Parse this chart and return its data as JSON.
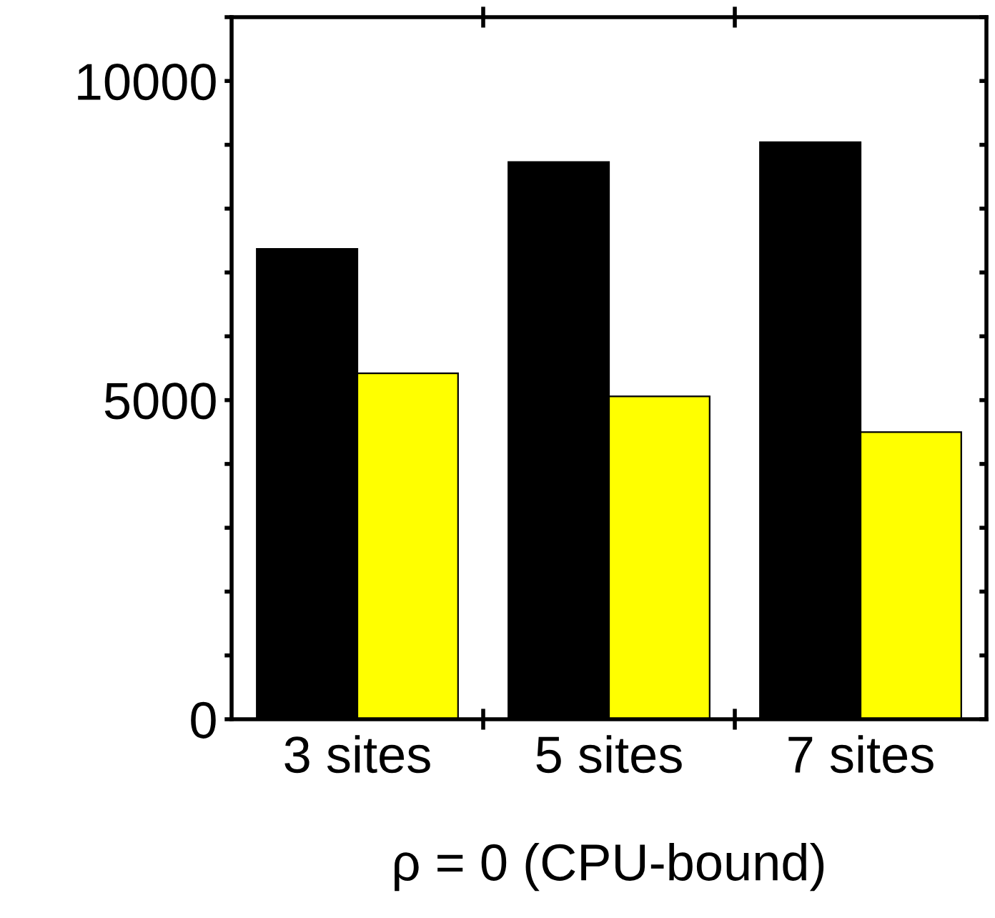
{
  "chart_data": {
    "type": "bar",
    "xlabel": "ρ = 0 (CPU-bound)",
    "categories": [
      "3 sites",
      "5 sites",
      "7 sites"
    ],
    "series": [
      {
        "color": "#000000",
        "values": [
          7370,
          8730,
          9040
        ]
      },
      {
        "color": "#ffff00",
        "values": [
          5420,
          5060,
          4500
        ]
      }
    ],
    "ylim": [
      0,
      11000
    ],
    "yticks": [
      0,
      {
        "value": 1000,
        "label": null
      },
      {
        "value": 2000,
        "label": null
      },
      {
        "value": 3000,
        "label": null
      },
      {
        "value": 4000,
        "label": null
      },
      5000,
      {
        "value": 6000,
        "label": null
      },
      {
        "value": 7000,
        "label": null
      },
      {
        "value": 8000,
        "label": null
      },
      {
        "value": 9000,
        "label": null
      },
      10000,
      {
        "value": 11000,
        "label": null
      }
    ],
    "grid": false,
    "legend": false
  }
}
